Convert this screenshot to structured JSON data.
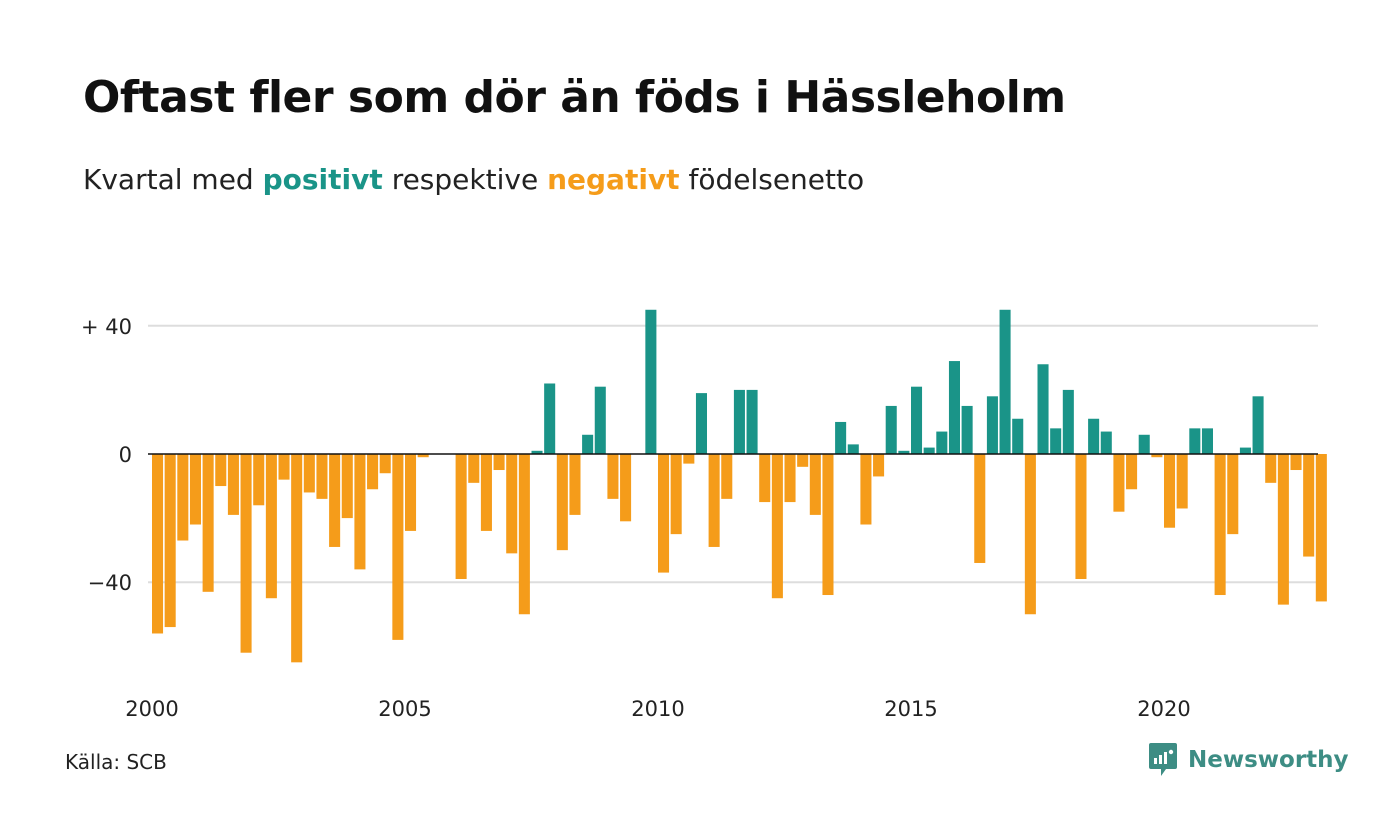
{
  "title": "Oftast fler som dör än föds i Hässleholm",
  "subtitle": {
    "prefix": "Kvartal med",
    "positive_word": "positivt",
    "middle": "respektive",
    "negative_word": "negativt",
    "suffix": "födelsenetto"
  },
  "source": "Källa: SCB",
  "brand": "Newsworthy",
  "colors": {
    "positive": "#1a9488",
    "negative": "#f59c1a",
    "grid": "#dddddd",
    "brand": "#3d8d84"
  },
  "icons": {
    "brand_logo": "newsworthy-logo-icon"
  },
  "chart_data": {
    "type": "bar",
    "x_start": "2000 Q1",
    "ylim": [
      -70,
      45
    ],
    "y_ticks": [
      {
        "value": 40,
        "label": "+ 40"
      },
      {
        "value": 0,
        "label": "0"
      },
      {
        "value": -40,
        "label": "−40"
      }
    ],
    "x_ticks": [
      "2000",
      "2005",
      "2010",
      "2015",
      "2020"
    ],
    "grid": true,
    "values": [
      -56,
      -54,
      -27,
      -22,
      -43,
      -10,
      -19,
      -62,
      -16,
      -45,
      -8,
      -65,
      -12,
      -14,
      -29,
      -20,
      -36,
      -11,
      -6,
      -58,
      -24,
      -1,
      0,
      0,
      -39,
      -9,
      -24,
      -5,
      -31,
      -50,
      1,
      22,
      -30,
      -19,
      6,
      21,
      -14,
      -21,
      0,
      45,
      -37,
      -25,
      -3,
      19,
      -29,
      -14,
      20,
      20,
      -15,
      -45,
      -15,
      -4,
      -19,
      -44,
      10,
      3,
      -22,
      -7,
      15,
      1,
      21,
      2,
      7,
      29,
      15,
      -34,
      18,
      45,
      11,
      -50,
      28,
      8,
      20,
      -39,
      11,
      7,
      -18,
      -11,
      6,
      -1,
      -23,
      -17,
      8,
      8,
      -44,
      -25,
      2,
      18,
      -9,
      -47,
      -5,
      -32,
      -46
    ]
  }
}
